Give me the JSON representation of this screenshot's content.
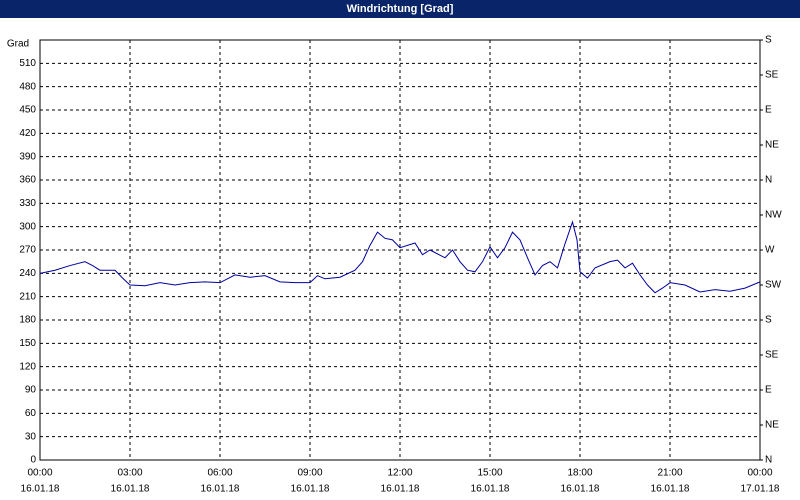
{
  "chart_data": {
    "type": "line",
    "title": "Windrichtung [Grad]",
    "y_label": "Grad",
    "x": [
      0,
      0.5,
      1,
      1.5,
      1.75,
      2,
      2.5,
      2.75,
      3,
      3.5,
      4,
      4.5,
      5,
      5.5,
      6,
      6.5,
      7,
      7.5,
      8,
      8.5,
      9,
      9.25,
      9.5,
      10,
      10.5,
      10.75,
      11,
      11.25,
      11.5,
      11.75,
      12,
      12.5,
      12.75,
      13,
      13.5,
      13.75,
      14,
      14.25,
      14.5,
      14.75,
      15,
      15.25,
      15.5,
      15.75,
      16,
      16.25,
      16.5,
      16.75,
      17,
      17.25,
      17.5,
      17.75,
      17.9,
      18,
      18.25,
      18.5,
      19,
      19.25,
      19.5,
      19.75,
      20,
      20.25,
      20.5,
      20.75,
      21,
      21.5,
      22,
      22.5,
      23,
      23.5,
      24
    ],
    "series": [
      {
        "name": "Windrichtung",
        "color": "#0000a0",
        "values": [
          240,
          244,
          250,
          255,
          250,
          244,
          244,
          234,
          225,
          224,
          228,
          225,
          228,
          229,
          228,
          238,
          235,
          237,
          229,
          228,
          228,
          237,
          233,
          235,
          244,
          255,
          276,
          293,
          285,
          283,
          273,
          279,
          264,
          270,
          260,
          270,
          255,
          244,
          242,
          255,
          274,
          260,
          273,
          293,
          283,
          260,
          238,
          250,
          255,
          247,
          278,
          306,
          283,
          242,
          234,
          247,
          255,
          257,
          247,
          253,
          238,
          225,
          215,
          221,
          228,
          225,
          216,
          219,
          217,
          221,
          229
        ]
      }
    ],
    "xlim": [
      0,
      24
    ],
    "xticks": [
      {
        "value": 0,
        "label": "00:00"
      },
      {
        "value": 3,
        "label": "03:00"
      },
      {
        "value": 6,
        "label": "06:00"
      },
      {
        "value": 9,
        "label": "09:00"
      },
      {
        "value": 12,
        "label": "12:00"
      },
      {
        "value": 15,
        "label": "15:00"
      },
      {
        "value": 18,
        "label": "18:00"
      },
      {
        "value": 21,
        "label": "21:00"
      },
      {
        "value": 24,
        "label": "00:00"
      }
    ],
    "xtick_dates": [
      "16.01.18",
      "16.01.18",
      "16.01.18",
      "16.01.18",
      "16.01.18",
      "16.01.18",
      "16.01.18",
      "16.01.18",
      "17.01.18"
    ],
    "ylim": [
      0,
      540
    ],
    "yticks": [
      0,
      30,
      60,
      90,
      120,
      150,
      180,
      210,
      240,
      270,
      300,
      330,
      360,
      390,
      420,
      450,
      480,
      510
    ],
    "y2lim": [
      0,
      540
    ],
    "y2ticks": [
      {
        "value": 0,
        "label": "N"
      },
      {
        "value": 45,
        "label": "NE"
      },
      {
        "value": 90,
        "label": "E"
      },
      {
        "value": 135,
        "label": "SE"
      },
      {
        "value": 180,
        "label": "S"
      },
      {
        "value": 225,
        "label": "SW"
      },
      {
        "value": 270,
        "label": "W"
      },
      {
        "value": 315,
        "label": "NW"
      },
      {
        "value": 360,
        "label": "N"
      },
      {
        "value": 405,
        "label": "NE"
      },
      {
        "value": 450,
        "label": "E"
      },
      {
        "value": 495,
        "label": "SE"
      },
      {
        "value": 540,
        "label": "S"
      }
    ],
    "grid": true
  }
}
